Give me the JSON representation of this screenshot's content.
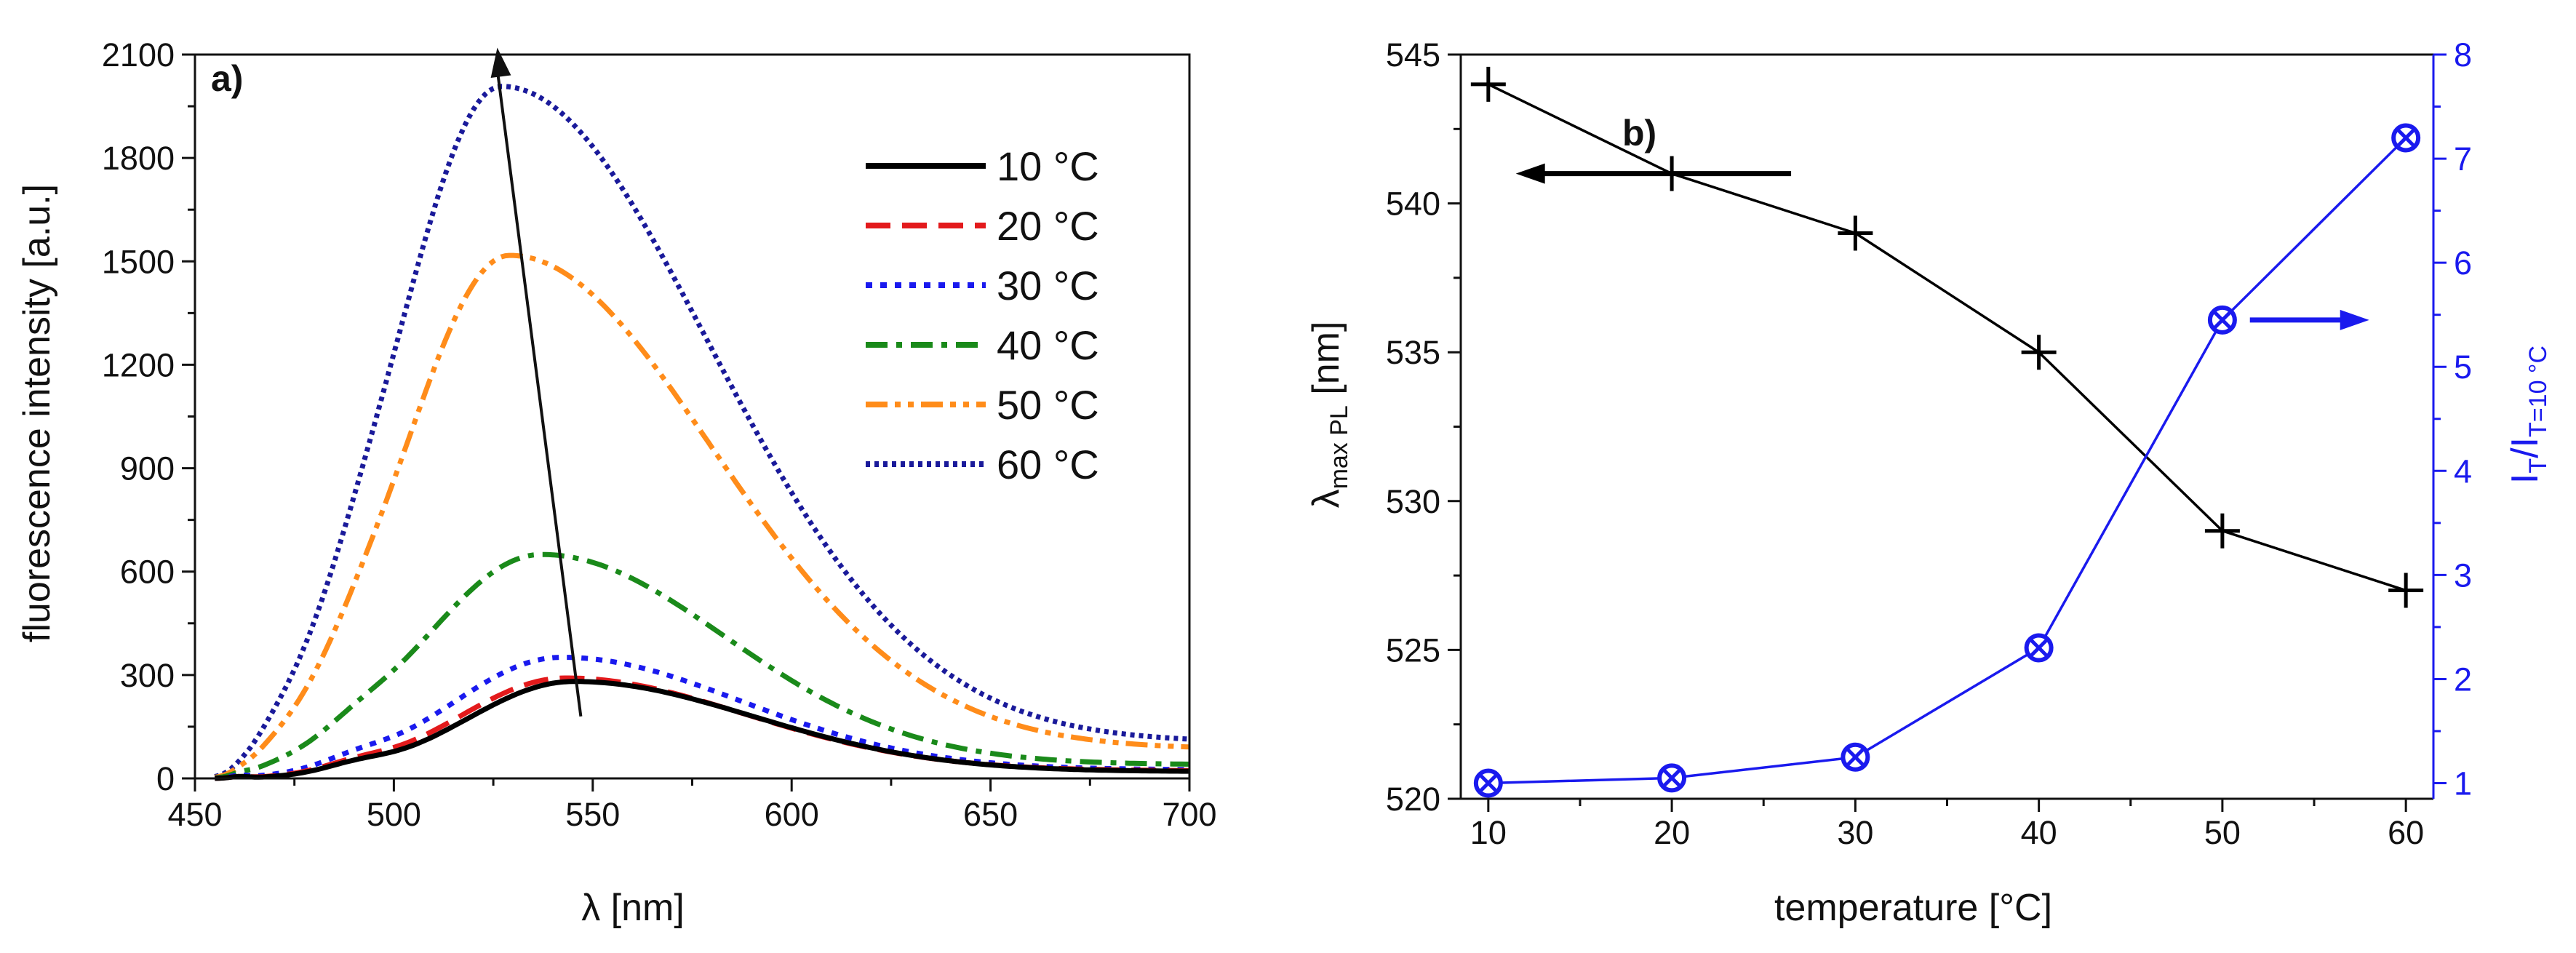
{
  "chart_data": [
    {
      "type": "line",
      "panel_label": "a)",
      "xlabel": "λ [nm]",
      "ylabel": "fluorescence intensity [a.u.]",
      "xlim": [
        450,
        700
      ],
      "ylim": [
        0,
        2100
      ],
      "xticks": [
        450,
        500,
        550,
        600,
        650,
        700
      ],
      "yticks": [
        0,
        300,
        600,
        900,
        1200,
        1500,
        1800,
        2100
      ],
      "legend_position": "top-right",
      "series": [
        {
          "name": "10 °C",
          "color": "#000000",
          "dash": "solid",
          "width": 7,
          "peak": 280,
          "center": 545,
          "sigma_left": 27,
          "sigma_right": 46,
          "shoulder": 18,
          "tail": 20
        },
        {
          "name": "20 °C",
          "color": "#e31a1c",
          "dash": "dashed",
          "width": 7,
          "peak": 290,
          "center": 543,
          "sigma_left": 27,
          "sigma_right": 46,
          "shoulder": 18,
          "tail": 22
        },
        {
          "name": "30 °C",
          "color": "#1a1aee",
          "dash": "dotted",
          "width": 7,
          "peak": 350,
          "center": 542,
          "sigma_left": 28,
          "sigma_right": 46,
          "shoulder": 20,
          "tail": 25
        },
        {
          "name": "40 °C",
          "color": "#1a8a1a",
          "dash": "dashdot",
          "width": 7,
          "peak": 648,
          "center": 537,
          "sigma_left": 30,
          "sigma_right": 47,
          "shoulder": 25,
          "tail": 40
        },
        {
          "name": "50 °C",
          "color": "#ff8c1a",
          "dash": "dashdotdot",
          "width": 7,
          "peak": 1515,
          "center": 529,
          "sigma_left": 27,
          "sigma_right": 52,
          "shoulder": 30,
          "tail": 85
        },
        {
          "name": "60 °C",
          "color": "#1a1a9a",
          "dash": "shortdot",
          "width": 7,
          "peak": 2005,
          "center": 527,
          "sigma_left": 27,
          "sigma_right": 53,
          "shoulder": 35,
          "tail": 105
        }
      ],
      "annotation_arrow": {
        "from": [
          547,
          180
        ],
        "to": [
          526,
          2150
        ]
      }
    },
    {
      "type": "line",
      "panel_label": "b)",
      "xlabel": "temperature [°C]",
      "ylabel_main": "λ",
      "ylabel_sub": "max PL",
      "ylabel_unit": " [nm]",
      "y2label_main": "I",
      "y2label_sub1": "T",
      "y2label_mid": "/I",
      "y2label_sub2": "T=10 °C",
      "x": [
        10,
        20,
        30,
        40,
        50,
        60
      ],
      "xlim": [
        8.5,
        61.5
      ],
      "xticks": [
        10,
        20,
        30,
        40,
        50,
        60
      ],
      "ylim": [
        520,
        545
      ],
      "yticks": [
        520,
        525,
        530,
        535,
        540,
        545
      ],
      "y2lim": [
        0.85,
        8
      ],
      "y2ticks": [
        1,
        2,
        3,
        4,
        5,
        6,
        7,
        8
      ],
      "series": [
        {
          "name": "λ max PL",
          "axis": "left",
          "color": "#000000",
          "marker": "plus",
          "values": [
            544,
            541,
            539,
            535,
            529,
            527
          ]
        },
        {
          "name": "I_T/I_T=10°C",
          "axis": "right",
          "color": "#1a1aee",
          "marker": "circled-x",
          "values": [
            1.0,
            1.05,
            1.25,
            2.3,
            5.45,
            7.2
          ]
        }
      ],
      "arrows": [
        {
          "direction": "left",
          "axis": "left",
          "color": "#000000",
          "x_from": 26.5,
          "x_to": 11.5,
          "y": 541
        },
        {
          "direction": "right",
          "axis": "right",
          "color": "#1a1aee",
          "x_from": 51.5,
          "x_to": 58.0,
          "y": 5.45
        }
      ]
    }
  ]
}
